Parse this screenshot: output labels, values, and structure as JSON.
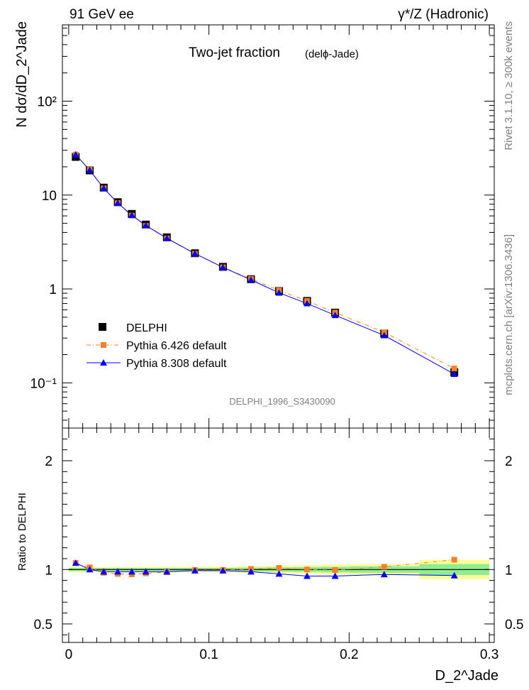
{
  "header": {
    "left": "91 GeV ee",
    "right": "γ*/Z (Hadronic)"
  },
  "side_labels": {
    "rivet": "Rivet 3.1.10, ≥ 300k events",
    "mcplots": "mcplots.cern.ch [arXiv:1306.3436]"
  },
  "colors": {
    "data": "#000000",
    "pythia6": "#ff7f27",
    "pythia8": "#0000ff",
    "band_yellow": "#ffff99",
    "band_green": "#90ee90"
  },
  "chart_data": [
    {
      "type": "scatter",
      "id": "main",
      "title": "Two-jet fraction",
      "subtitle": "(delϕ-Jade)",
      "ylabel": "N dσ/dD_2^Jade",
      "yscale": "log",
      "xlim": [
        -0.0045,
        0.3035
      ],
      "ylim": [
        0.033,
        650
      ],
      "y_ticks": [
        {
          "value": 0.1,
          "label": "10⁻¹"
        },
        {
          "value": 1,
          "label": "1"
        },
        {
          "value": 10,
          "label": "10"
        },
        {
          "value": 100,
          "label": "10²"
        }
      ],
      "watermark": "DELPHI_1996_S3430090",
      "legend": [
        {
          "key": "delphi",
          "label": "DELPHI"
        },
        {
          "key": "pythia6",
          "label": "Pythia 6.426 default"
        },
        {
          "key": "pythia8",
          "label": "Pythia 8.308 default"
        }
      ],
      "x": [
        0.005,
        0.015,
        0.025,
        0.035,
        0.045,
        0.055,
        0.07,
        0.09,
        0.11,
        0.13,
        0.15,
        0.17,
        0.19,
        0.225,
        0.275
      ],
      "series": [
        {
          "key": "delphi",
          "name": "DELPHI",
          "values": [
            25.5,
            18.3,
            12.0,
            8.4,
            6.3,
            4.85,
            3.55,
            2.4,
            1.72,
            1.27,
            0.95,
            0.745,
            0.56,
            0.335,
            0.13
          ]
        },
        {
          "key": "pythia6",
          "name": "Pythia 6.426 default",
          "values": [
            27.0,
            18.6,
            11.8,
            8.2,
            6.05,
            4.7,
            3.45,
            2.37,
            1.7,
            1.28,
            0.965,
            0.745,
            0.56,
            0.345,
            0.142
          ]
        },
        {
          "key": "pythia8",
          "name": "Pythia 8.308 default",
          "values": [
            27.0,
            18.4,
            11.8,
            8.2,
            6.1,
            4.75,
            3.47,
            2.38,
            1.7,
            1.25,
            0.91,
            0.7,
            0.525,
            0.32,
            0.124
          ]
        }
      ]
    },
    {
      "type": "scatter",
      "id": "ratio",
      "ylabel": "Ratio to DELPHI",
      "xlabel": "D_2^Jade",
      "xlim": [
        -0.0045,
        0.3035
      ],
      "ylim": [
        0.33,
        2.3
      ],
      "y_ticks": [
        {
          "value": 0.5,
          "label": "0.5"
        },
        {
          "value": 1,
          "label": "1"
        },
        {
          "value": 2,
          "label": "2"
        }
      ],
      "x_ticks": [
        {
          "value": 0,
          "label": "0"
        },
        {
          "value": 0.1,
          "label": "0.1"
        },
        {
          "value": 0.2,
          "label": "0.2"
        },
        {
          "value": 0.3,
          "label": "0.3"
        }
      ],
      "bins": [
        [
          0,
          0.01
        ],
        [
          0.01,
          0.02
        ],
        [
          0.02,
          0.03
        ],
        [
          0.03,
          0.04
        ],
        [
          0.04,
          0.05
        ],
        [
          0.05,
          0.06
        ],
        [
          0.06,
          0.08
        ],
        [
          0.08,
          0.1
        ],
        [
          0.1,
          0.12
        ],
        [
          0.12,
          0.14
        ],
        [
          0.14,
          0.16
        ],
        [
          0.16,
          0.18
        ],
        [
          0.18,
          0.2
        ],
        [
          0.2,
          0.25
        ],
        [
          0.25,
          0.3
        ]
      ],
      "band_yellow_halfwidth": [
        0.025,
        0.025,
        0.025,
        0.025,
        0.025,
        0.025,
        0.025,
        0.025,
        0.025,
        0.03,
        0.035,
        0.04,
        0.045,
        0.05,
        0.09
      ],
      "band_green_halfwidth": [
        0.015,
        0.015,
        0.015,
        0.015,
        0.015,
        0.015,
        0.015,
        0.015,
        0.015,
        0.018,
        0.02,
        0.023,
        0.026,
        0.03,
        0.05
      ],
      "x": [
        0.005,
        0.015,
        0.025,
        0.035,
        0.045,
        0.055,
        0.07,
        0.09,
        0.11,
        0.13,
        0.15,
        0.17,
        0.19,
        0.225,
        0.275
      ],
      "series": [
        {
          "key": "pythia6",
          "name": "Pythia 6.426 default",
          "values": [
            1.06,
            1.02,
            0.97,
            0.96,
            0.955,
            0.965,
            0.975,
            0.995,
            0.995,
            1.005,
            1.015,
            1.0,
            0.995,
            1.025,
            1.09
          ]
        },
        {
          "key": "pythia8",
          "name": "Pythia 8.308 default",
          "values": [
            1.06,
            1.0,
            0.98,
            0.98,
            0.98,
            0.98,
            0.98,
            0.99,
            0.99,
            0.98,
            0.96,
            0.94,
            0.94,
            0.955,
            0.945
          ]
        }
      ]
    }
  ]
}
